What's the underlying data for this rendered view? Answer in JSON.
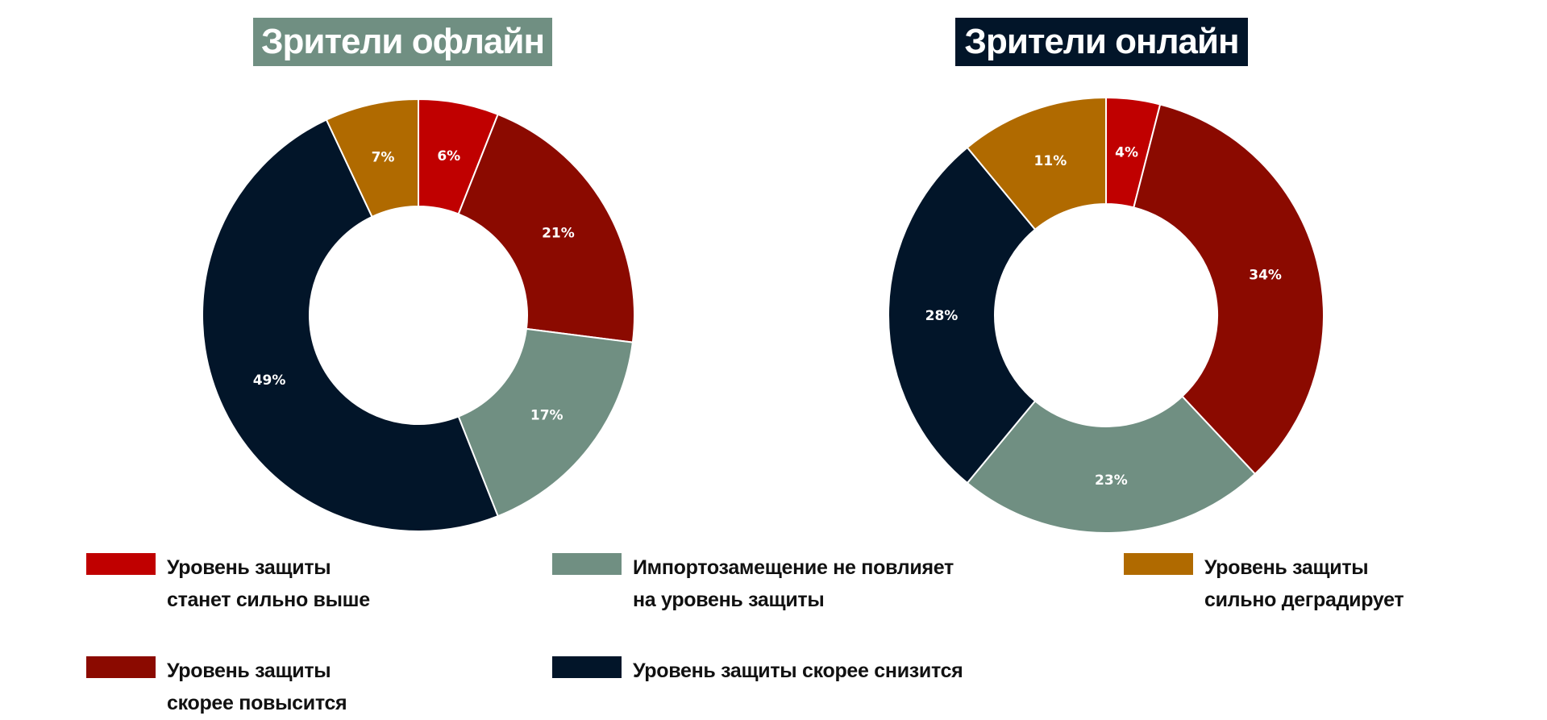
{
  "chart_data": [
    {
      "type": "pie",
      "subtype": "donut",
      "title": "Зрители офлайн",
      "title_bg": "#708f82",
      "categories": [
        "Уровень защиты станет сильно выше",
        "Уровень защиты скорее повысится",
        "Импортозамещение не повлияет на уровень защиты",
        "Уровень защиты скорее снизится",
        "Уровень защиты сильно деградирует"
      ],
      "values": [
        6,
        21,
        17,
        49,
        7
      ],
      "labels": [
        "6%",
        "21%",
        "17%",
        "49%",
        "7%"
      ]
    },
    {
      "type": "pie",
      "subtype": "donut",
      "title": "Зрители онлайн",
      "title_bg": "#021529",
      "categories": [
        "Уровень защиты станет сильно выше",
        "Уровень защиты скорее повысится",
        "Импортозамещение не повлияет на уровень защиты",
        "Уровень защиты скорее снизится",
        "Уровень защиты сильно деградирует"
      ],
      "values": [
        4,
        34,
        23,
        28,
        11
      ],
      "labels": [
        "4%",
        "34%",
        "23%",
        "28%",
        "11%"
      ]
    }
  ],
  "colors": [
    "#c00000",
    "#8b0a00",
    "#708f82",
    "#021529",
    "#b06a00"
  ],
  "legend": [
    {
      "line1": "Уровень защиты",
      "line2": "станет сильно выше",
      "color": "#c00000"
    },
    {
      "line1": "Импортозамещение не повлияет",
      "line2": "на уровень защиты",
      "color": "#708f82"
    },
    {
      "line1": "Уровень защиты",
      "line2": "сильно деградирует",
      "color": "#b06a00"
    },
    {
      "line1": "Уровень защиты",
      "line2": "скорее повысится",
      "color": "#8b0a00"
    },
    {
      "line1": "Уровень защиты скорее снизится",
      "line2": "",
      "color": "#021529"
    }
  ]
}
